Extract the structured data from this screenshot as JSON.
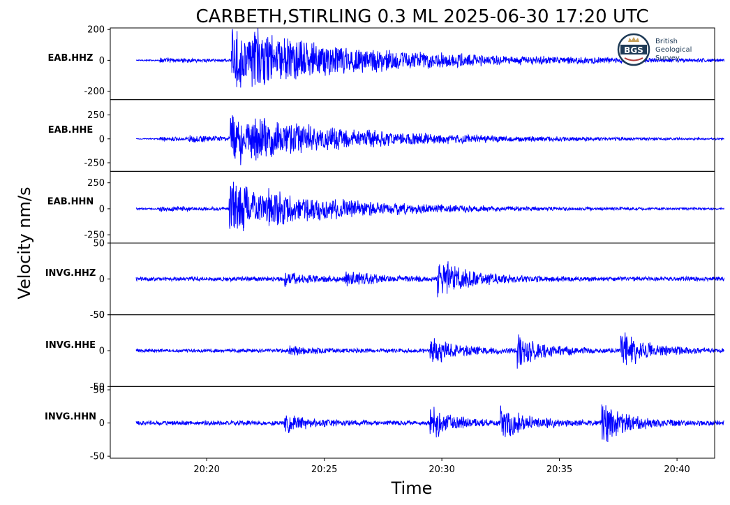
{
  "chart_data": {
    "type": "line",
    "title": "CARBETH,STIRLING 0.3 ML   2025-06-30 17:20 UTC",
    "xlabel": "Time",
    "ylabel": "Velocity nm/s",
    "x_ticks": [
      "20:20",
      "20:25",
      "20:30",
      "20:35",
      "20:40"
    ],
    "x_tick_minutes": [
      3,
      8,
      13,
      18,
      23
    ],
    "xlim_minutes": [
      -1.1,
      24.6
    ],
    "trace_minutes": [
      0,
      25
    ],
    "line_color": "#0000ff",
    "panels": [
      {
        "name": "EAB.HHZ",
        "ylim": [
          -255,
          210
        ],
        "yticks": [
          200,
          0,
          -200
        ],
        "ytick_labels": [
          "200",
          "0",
          "-200"
        ],
        "arrivals": [
          {
            "t": 1.0,
            "a": 0.06
          },
          {
            "t": 4.05,
            "a": 0.85
          },
          {
            "t": 4.9,
            "a": 0.45
          }
        ],
        "decay": 0.22,
        "noise": 0.02
      },
      {
        "name": "EAB.HHE",
        "ylim": [
          -340,
          410
        ],
        "yticks": [
          250,
          0,
          -250
        ],
        "ytick_labels": [
          "250",
          "0",
          "-250"
        ],
        "arrivals": [
          {
            "t": 1.0,
            "a": 0.05
          },
          {
            "t": 2.2,
            "a": 0.07
          },
          {
            "t": 4.0,
            "a": 0.78
          },
          {
            "t": 5.0,
            "a": 0.2
          }
        ],
        "decay": 0.2,
        "noise": 0.015
      },
      {
        "name": "EAB.HHN",
        "ylim": [
          -330,
          360
        ],
        "yticks": [
          250,
          0,
          -250
        ],
        "ytick_labels": [
          "250",
          "0",
          "-250"
        ],
        "arrivals": [
          {
            "t": 1.0,
            "a": 0.08
          },
          {
            "t": 3.95,
            "a": 0.88
          },
          {
            "t": 5.5,
            "a": 0.18
          }
        ],
        "decay": 0.16,
        "noise": 0.025
      },
      {
        "name": "INVG.HHZ",
        "ylim": [
          -50,
          50
        ],
        "yticks": [
          50,
          0,
          -50
        ],
        "ytick_labels": [
          "50",
          "0",
          "-50"
        ],
        "arrivals": [
          {
            "t": 6.3,
            "a": 0.18
          },
          {
            "t": 8.9,
            "a": 0.22
          },
          {
            "t": 12.8,
            "a": 0.72
          }
        ],
        "decay": 0.04,
        "noise": 0.07
      },
      {
        "name": "INVG.HHE",
        "ylim": [
          -50,
          50
        ],
        "yticks": [
          50,
          0,
          -50
        ],
        "ytick_labels": [
          "50",
          "0",
          "-50"
        ],
        "arrivals": [
          {
            "t": 6.5,
            "a": 0.14
          },
          {
            "t": 12.5,
            "a": 0.5
          },
          {
            "t": 16.2,
            "a": 0.55
          },
          {
            "t": 20.6,
            "a": 0.62
          }
        ],
        "decay": 0.03,
        "noise": 0.06
      },
      {
        "name": "INVG.HHN",
        "ylim": [
          -53,
          55
        ],
        "yticks": [
          50,
          0,
          -50
        ],
        "ytick_labels": [
          "50",
          "0",
          "-50"
        ],
        "arrivals": [
          {
            "t": 6.3,
            "a": 0.28
          },
          {
            "t": 12.5,
            "a": 0.5
          },
          {
            "t": 15.5,
            "a": 0.55
          },
          {
            "t": 19.8,
            "a": 0.7
          }
        ],
        "decay": 0.025,
        "noise": 0.07
      }
    ]
  },
  "logo": {
    "abbrev": "BGS",
    "lines": [
      "British",
      "Geological",
      "Survey"
    ]
  }
}
